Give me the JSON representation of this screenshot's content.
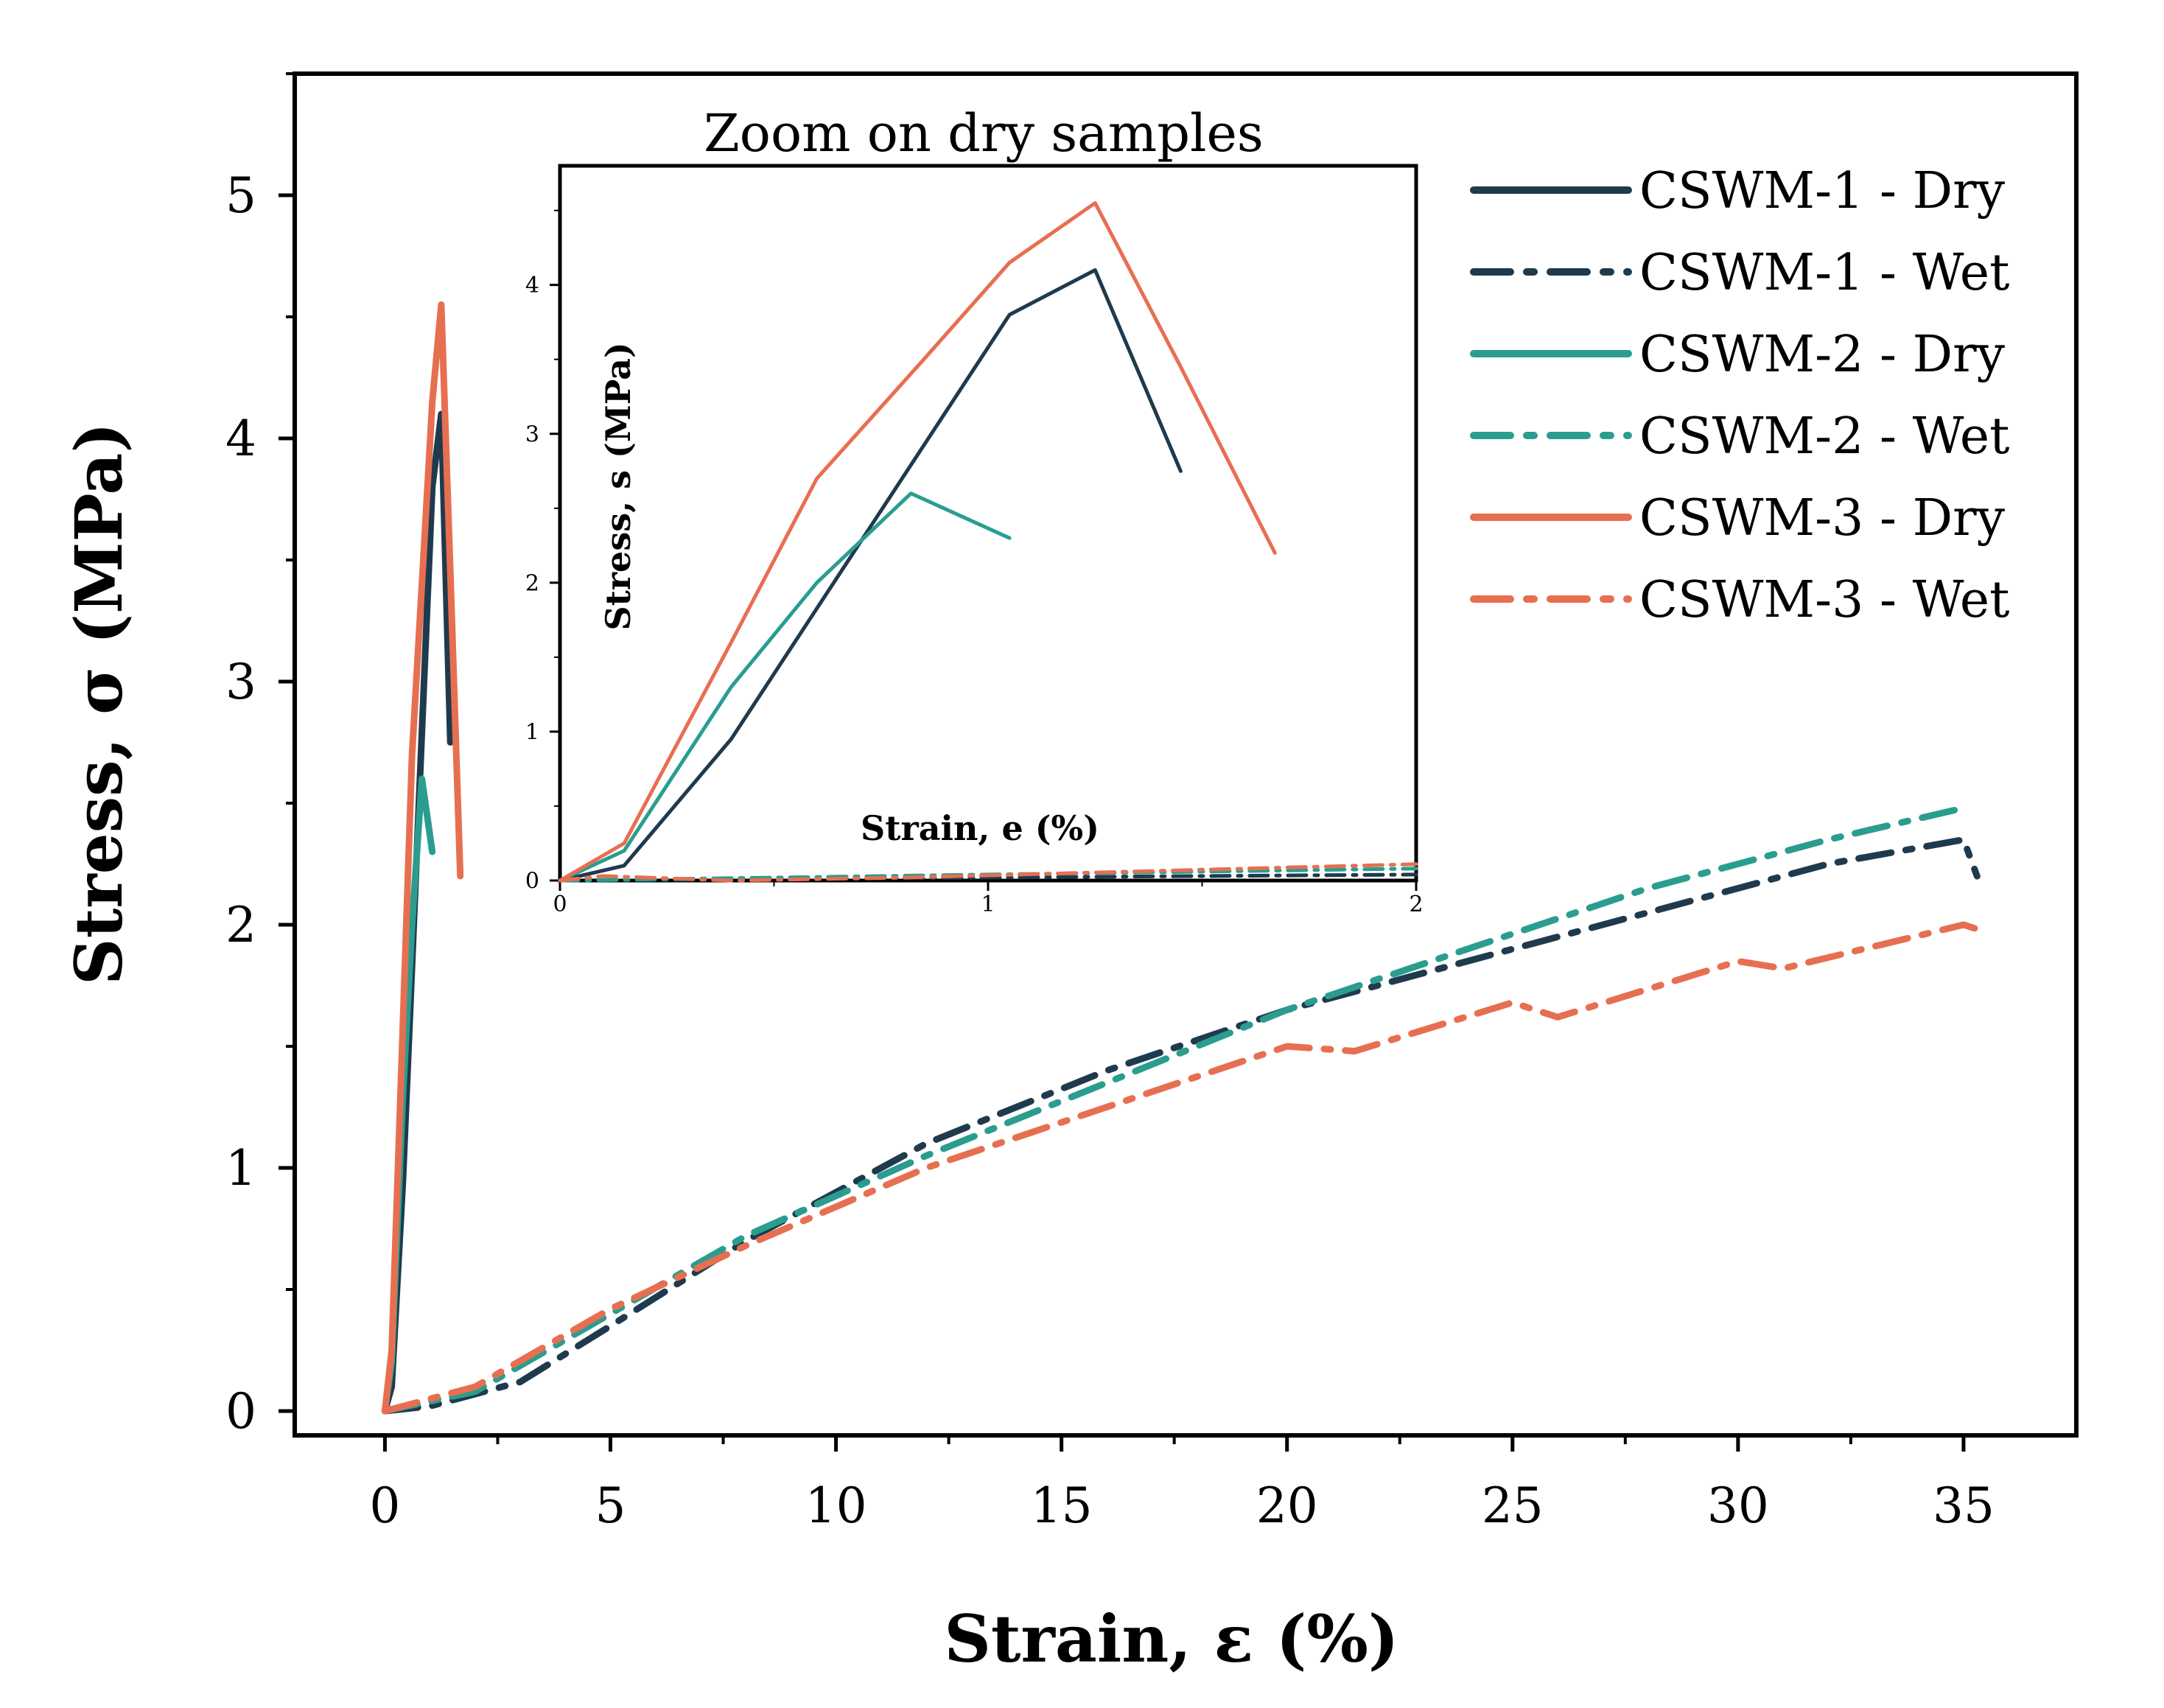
{
  "chart_data": [
    {
      "id": "main",
      "type": "line",
      "title": "",
      "xlabel": "Strain, ε (%)",
      "ylabel": "Stress, σ (MPa)",
      "xlim": [
        -2,
        37.5
      ],
      "ylim": [
        -0.1,
        5.5
      ],
      "xticks": [
        0,
        5,
        10,
        15,
        20,
        25,
        30,
        35
      ],
      "yticks": [
        0,
        1,
        2,
        3,
        4,
        5
      ],
      "xtick_labels": [
        "0",
        "5",
        "10",
        "15",
        "20",
        "25",
        "30",
        "35"
      ],
      "ytick_labels": [
        "0",
        "1",
        "2",
        "3",
        "4",
        "5"
      ],
      "grid": false,
      "legend_position": "top-right",
      "series": [
        {
          "name": "CSWM-1 - Dry",
          "color": "#1f3a4d",
          "style": "solid",
          "x": [
            0,
            0.15,
            0.4,
            1.05,
            1.25,
            1.45
          ],
          "y": [
            0,
            0.1,
            0.95,
            3.8,
            4.1,
            2.75
          ]
        },
        {
          "name": "CSWM-1 - Wet",
          "color": "#1f3a4d",
          "style": "dashdot",
          "x": [
            0,
            1,
            3,
            5,
            8,
            12,
            16,
            20,
            24,
            28,
            32,
            35,
            35.3
          ],
          "y": [
            0,
            0.02,
            0.12,
            0.35,
            0.7,
            1.1,
            1.4,
            1.65,
            1.85,
            2.05,
            2.25,
            2.35,
            2.2
          ]
        },
        {
          "name": "CSWM-2 - Dry",
          "color": "#2a9d8f",
          "style": "solid",
          "x": [
            0,
            0.15,
            0.4,
            0.6,
            0.82,
            1.05
          ],
          "y": [
            0,
            0.2,
            1.3,
            2.0,
            2.6,
            2.3
          ]
        },
        {
          "name": "CSWM-2 - Wet",
          "color": "#2a9d8f",
          "style": "dashdot",
          "x": [
            0,
            2,
            5,
            8,
            12,
            16,
            20,
            24,
            28,
            32,
            35
          ],
          "y": [
            0,
            0.08,
            0.4,
            0.72,
            1.05,
            1.35,
            1.65,
            1.9,
            2.15,
            2.35,
            2.48
          ]
        },
        {
          "name": "CSWM-3 - Dry",
          "color": "#e76f51",
          "style": "solid",
          "x": [
            0,
            0.15,
            0.4,
            0.6,
            0.85,
            1.05,
            1.25,
            1.45,
            1.67
          ],
          "y": [
            0,
            0.25,
            1.6,
            2.7,
            3.5,
            4.15,
            4.55,
            3.45,
            2.2
          ]
        },
        {
          "name": "CSWM-3 - Wet",
          "color": "#e76f51",
          "style": "dashdot",
          "x": [
            0,
            2,
            5,
            8,
            12,
            16,
            20,
            21.5,
            25,
            26,
            30,
            31,
            35,
            35.5
          ],
          "y": [
            0,
            0.1,
            0.42,
            0.68,
            1.0,
            1.25,
            1.5,
            1.48,
            1.68,
            1.62,
            1.85,
            1.82,
            2.0,
            1.97
          ]
        }
      ]
    },
    {
      "id": "inset",
      "type": "line",
      "title": "Zoom on dry samples",
      "xlabel": "Strain, e (%)",
      "ylabel": "Stress, s (MPa)",
      "xlim": [
        0,
        2
      ],
      "ylim": [
        0,
        4.8
      ],
      "xticks": [
        0,
        1,
        2
      ],
      "yticks": [
        0,
        1,
        2,
        3,
        4
      ],
      "xtick_labels": [
        "0",
        "1",
        "2"
      ],
      "ytick_labels": [
        "0",
        "1",
        "2",
        "3",
        "4"
      ],
      "grid": false,
      "series": [
        {
          "name": "CSWM-1 - Dry",
          "color": "#1f3a4d",
          "style": "solid",
          "x": [
            0,
            0.15,
            0.4,
            1.05,
            1.25,
            1.45
          ],
          "y": [
            0,
            0.1,
            0.95,
            3.8,
            4.1,
            2.75
          ]
        },
        {
          "name": "CSWM-1 - Wet",
          "color": "#1f3a4d",
          "style": "dashdot",
          "x": [
            0,
            0.5,
            1.0,
            1.5,
            2.0
          ],
          "y": [
            0,
            0.01,
            0.02,
            0.03,
            0.04
          ]
        },
        {
          "name": "CSWM-2 - Dry",
          "color": "#2a9d8f",
          "style": "solid",
          "x": [
            0,
            0.15,
            0.4,
            0.6,
            0.82,
            1.05
          ],
          "y": [
            0,
            0.2,
            1.3,
            2.0,
            2.6,
            2.3
          ]
        },
        {
          "name": "CSWM-2 - Wet",
          "color": "#2a9d8f",
          "style": "dashdot",
          "x": [
            0,
            0.5,
            1.0,
            1.5,
            2.0
          ],
          "y": [
            0,
            0.02,
            0.04,
            0.06,
            0.08
          ]
        },
        {
          "name": "CSWM-3 - Dry",
          "color": "#e76f51",
          "style": "solid",
          "x": [
            0,
            0.15,
            0.4,
            0.6,
            0.85,
            1.05,
            1.25,
            1.45,
            1.67
          ],
          "y": [
            0,
            0.25,
            1.6,
            2.7,
            3.5,
            4.15,
            4.55,
            3.45,
            2.2
          ]
        },
        {
          "name": "CSWM-3 - Wet",
          "color": "#e76f51",
          "style": "dashdot",
          "x": [
            0,
            0.1,
            0.4,
            0.8,
            1.2,
            1.6,
            2.0
          ],
          "y": [
            0,
            0.03,
            0.0,
            0.02,
            0.05,
            0.08,
            0.11
          ]
        }
      ]
    }
  ]
}
